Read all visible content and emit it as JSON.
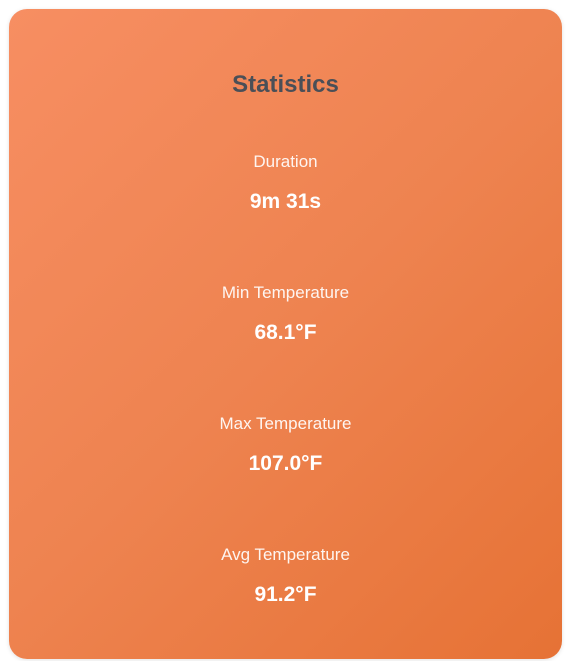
{
  "card": {
    "title": "Statistics",
    "stats": [
      {
        "label": "Duration",
        "value": "9m 31s"
      },
      {
        "label": "Min Temperature",
        "value": "68.1°F"
      },
      {
        "label": "Max Temperature",
        "value": "107.0°F"
      },
      {
        "label": "Avg Temperature",
        "value": "91.2°F"
      }
    ]
  },
  "colors": {
    "gradient_start": "#f78e62",
    "gradient_end": "#e67235",
    "title": "#4a4f57",
    "text": "#ffffff"
  }
}
